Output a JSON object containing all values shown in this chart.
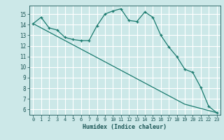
{
  "xlabel": "Humidex (Indice chaleur)",
  "bg_color": "#cce8e8",
  "grid_color": "#ffffff",
  "line_color": "#1a7a6e",
  "x_curve": [
    0,
    1,
    2,
    3,
    4,
    5,
    6,
    7,
    8,
    9,
    10,
    11,
    12,
    13,
    14,
    15,
    16,
    17,
    18,
    19,
    20,
    21,
    22,
    23
  ],
  "y_curve": [
    14.1,
    14.7,
    13.7,
    13.5,
    12.8,
    12.6,
    12.5,
    12.5,
    13.9,
    15.0,
    15.3,
    15.5,
    14.4,
    14.3,
    15.2,
    14.7,
    13.0,
    11.9,
    11.0,
    9.8,
    9.5,
    8.1,
    6.3,
    5.7
  ],
  "x_straight": [
    0,
    1,
    2,
    3,
    4,
    5,
    6,
    7,
    8,
    9,
    10,
    11,
    12,
    13,
    14,
    15,
    16,
    17,
    18,
    19,
    20,
    21,
    22,
    23
  ],
  "y_straight": [
    14.1,
    13.7,
    13.3,
    12.9,
    12.5,
    12.1,
    11.7,
    11.3,
    10.9,
    10.5,
    10.1,
    9.7,
    9.3,
    8.9,
    8.5,
    8.1,
    7.7,
    7.3,
    6.9,
    6.5,
    6.3,
    6.1,
    5.9,
    5.7
  ],
  "ylim": [
    5.5,
    15.8
  ],
  "yticks": [
    6,
    7,
    8,
    9,
    10,
    11,
    12,
    13,
    14,
    15
  ],
  "xlim": [
    -0.5,
    23.5
  ],
  "xticks": [
    0,
    1,
    2,
    3,
    4,
    5,
    6,
    7,
    8,
    9,
    10,
    11,
    12,
    13,
    14,
    15,
    16,
    17,
    18,
    19,
    20,
    21,
    22,
    23
  ]
}
